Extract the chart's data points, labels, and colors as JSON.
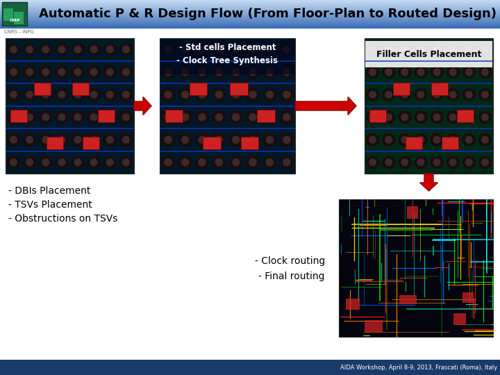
{
  "title": "Automatic P & R Design Flow (From Floor-Plan to Routed Design)",
  "footer": "AIDA Workshop, April 8-9, 2013, Frascati (Roma), Italy",
  "header_bg_left": "#3a6db5",
  "header_bg_right": "#a8c4e0",
  "footer_bg": "#1a3a6b",
  "arrow_color": "#cc0000",
  "box2_label_line1": "- Std cells Placement",
  "box2_label_line2": "- Clock Tree Synthesis",
  "box3_label": "Filler Cells Placement",
  "box4_label_line1": "- Clock routing",
  "box4_label_line2": "- Final routing",
  "bottom_left_line1": "- DBIs Placement",
  "bottom_left_line2": "- TSVs Placement",
  "bottom_left_line3": "- Obstructions on TSVs",
  "white_bg": "#ffffff",
  "subtitle_small": "CNRS - INPG"
}
